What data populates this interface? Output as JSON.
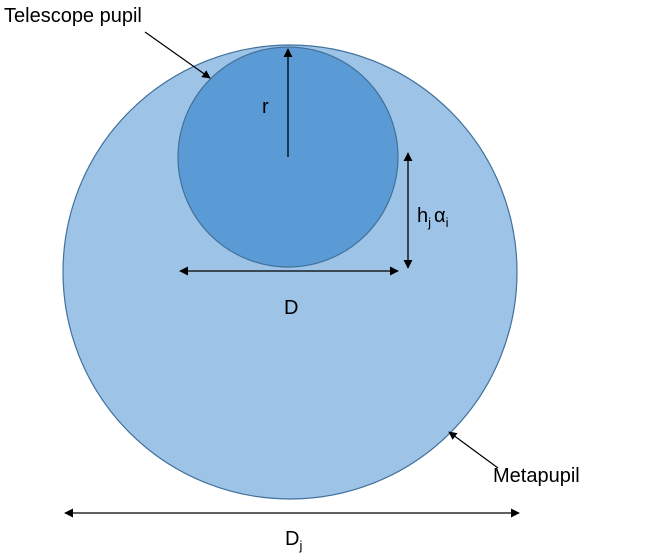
{
  "labels": {
    "telescope_pupil": "Telescope pupil",
    "r": "r",
    "h": "h",
    "h_sub": "j",
    "alpha": "α",
    "alpha_sub": "i",
    "D": "D",
    "metapupil": "Metapupil",
    "Dj": "D",
    "Dj_sub": "j"
  }
}
